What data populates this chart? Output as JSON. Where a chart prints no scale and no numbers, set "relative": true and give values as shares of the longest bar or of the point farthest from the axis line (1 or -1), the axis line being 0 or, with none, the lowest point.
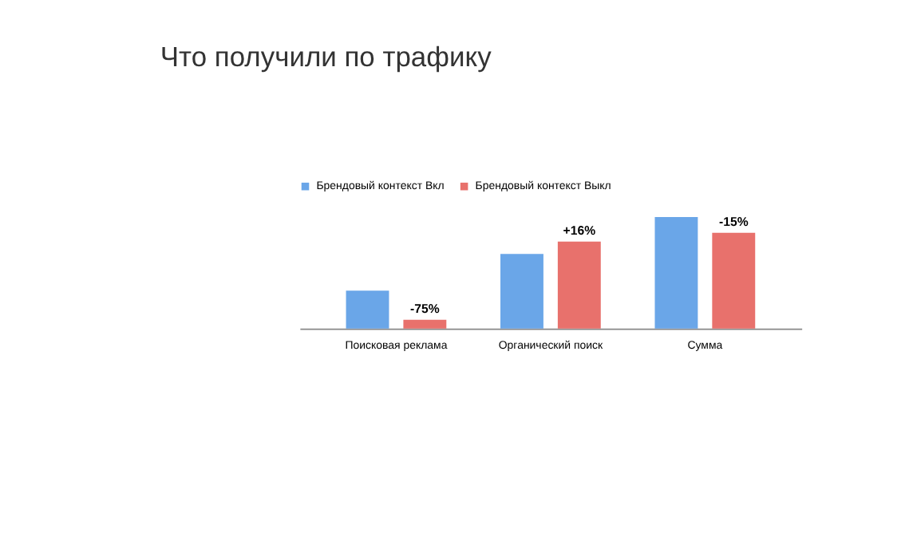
{
  "chart_data": {
    "type": "bar",
    "title": "Что получили по трафику",
    "relative": true,
    "legend": "top",
    "categories": [
      "Поисковая реклама",
      "Органический поиск",
      "Сумма"
    ],
    "series": [
      {
        "name": "Брендовый контекст Вкл",
        "color": "#6aa6e8",
        "values": [
          0.34,
          0.67,
          1.0
        ]
      },
      {
        "name": "Брендовый контекст Выкл",
        "color": "#e8716c",
        "values": [
          0.08,
          0.78,
          0.86
        ]
      }
    ],
    "annotations": [
      {
        "text": "-75%",
        "x": "Поисковая реклама",
        "y": 0.08
      },
      {
        "text": "+16%",
        "x": "Органический поиск",
        "y": 0.78
      },
      {
        "text": "-15%",
        "x": "Сумма",
        "y": 0.86
      }
    ]
  }
}
